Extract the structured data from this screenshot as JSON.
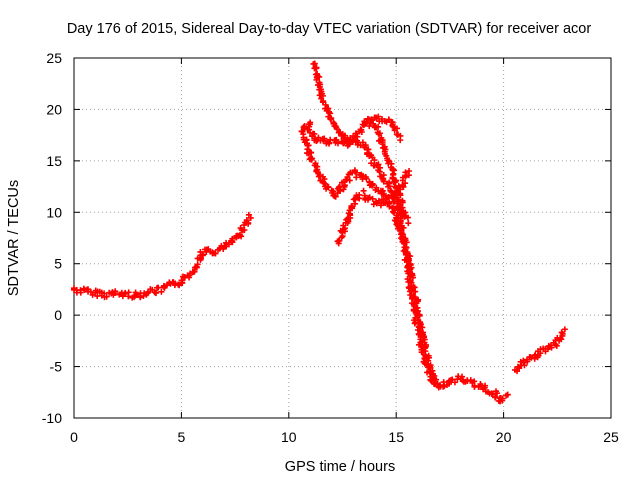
{
  "chart_data": {
    "type": "scatter",
    "title": "Day 176 of 2015, Sidereal Day-to-day VTEC variation (SDTVAR) for receiver acor",
    "xlabel": "GPS time / hours",
    "ylabel": "SDTVAR / TECUs",
    "xlim": [
      0,
      25
    ],
    "ylim": [
      -10,
      25
    ],
    "xticks": [
      0,
      5,
      10,
      15,
      20,
      25
    ],
    "yticks": [
      -10,
      -5,
      0,
      5,
      10,
      15,
      20,
      25
    ],
    "grid": true,
    "marker": "plus",
    "color": "#ff0000",
    "series": [
      {
        "name": "trace-1",
        "x": [
          0,
          0.5,
          1,
          1.5,
          2,
          2.5,
          3,
          3.5,
          4,
          4.5,
          5,
          5.5,
          6,
          6.5,
          7,
          7.5,
          8,
          8.2
        ],
        "y": [
          2.5,
          2.3,
          2.2,
          2.0,
          2.1,
          2.0,
          1.9,
          2.3,
          2.4,
          2.9,
          3.2,
          4.2,
          6.2,
          6.1,
          6.6,
          7.3,
          8.8,
          9.8
        ]
      },
      {
        "name": "trace-2",
        "x": [
          11.2,
          11.4,
          11.6,
          12.0,
          12.4,
          12.8,
          13.2,
          13.6,
          14.0,
          14.4,
          14.8,
          15.2,
          15.6,
          16.0,
          16.4,
          16.8,
          17.2,
          17.6,
          18.0,
          18.5,
          19.0,
          19.5,
          20.0,
          20.2
        ],
        "y": [
          24.5,
          22.5,
          20.8,
          19.0,
          17.8,
          16.6,
          16.9,
          16.2,
          14.8,
          13.4,
          12.0,
          9.5,
          5.0,
          0.5,
          -4.0,
          -6.4,
          -6.8,
          -6.4,
          -6.1,
          -6.6,
          -6.9,
          -7.6,
          -8.3,
          -7.8
        ]
      },
      {
        "name": "trace-3",
        "x": [
          10.6,
          10.9,
          11.2,
          11.6,
          12.0,
          12.4,
          12.8,
          13.2,
          13.6,
          14.0,
          14.4,
          14.8,
          15.2
        ],
        "y": [
          18.2,
          18.6,
          17.2,
          16.9,
          16.8,
          16.9,
          17.0,
          17.6,
          18.8,
          19.0,
          19.1,
          18.6,
          17.0
        ]
      },
      {
        "name": "trace-4",
        "x": [
          10.6,
          11.0,
          11.4,
          11.8,
          12.2,
          12.6,
          13.0,
          13.4,
          13.8,
          14.2,
          14.6,
          15.0,
          15.4,
          15.8,
          16.2,
          16.6,
          17.0
        ],
        "y": [
          17.8,
          15.5,
          13.8,
          12.5,
          11.5,
          13.0,
          13.8,
          13.5,
          12.9,
          12.0,
          11.2,
          9.5,
          6.5,
          1.0,
          -3.5,
          -6.0,
          -7.2
        ]
      },
      {
        "name": "trace-5",
        "x": [
          12.3,
          12.6,
          13.0,
          13.4,
          13.8,
          14.2,
          14.6,
          15.0,
          15.4,
          15.6
        ],
        "y": [
          7.0,
          8.5,
          11.0,
          11.8,
          11.2,
          10.8,
          11.2,
          11.8,
          13.2,
          14.0
        ]
      },
      {
        "name": "trace-6",
        "x": [
          13.8,
          14.1,
          14.4,
          14.7,
          15.0,
          15.2,
          15.5
        ],
        "y": [
          18.5,
          18.2,
          16.5,
          14.8,
          12.8,
          11.0,
          9.0
        ]
      },
      {
        "name": "trace-7",
        "x": [
          20.6,
          20.9,
          21.3,
          21.7,
          22.1,
          22.5,
          22.8
        ],
        "y": [
          -5.5,
          -4.7,
          -4.2,
          -3.6,
          -3.2,
          -2.6,
          -1.4
        ]
      }
    ]
  }
}
